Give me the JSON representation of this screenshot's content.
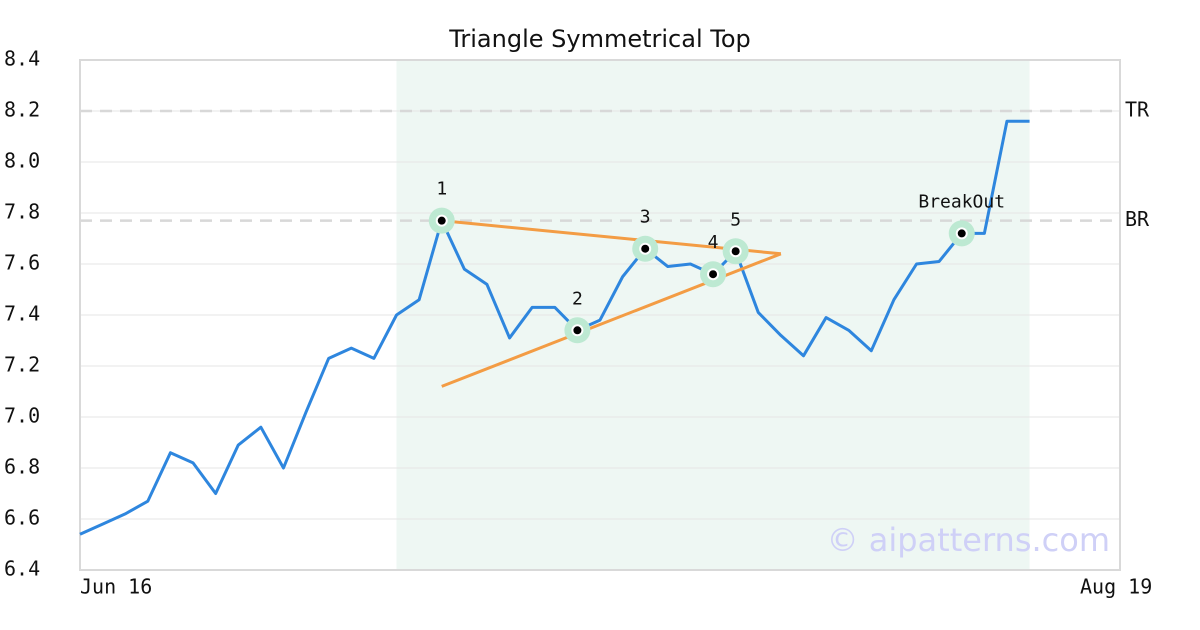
{
  "chart_data": {
    "type": "line",
    "title": "Triangle Symmetrical Top",
    "categories": [
      "Jun 16",
      null,
      null,
      null,
      null,
      null,
      null,
      null,
      null,
      null,
      null,
      null,
      null,
      null,
      null,
      null,
      null,
      null,
      null,
      null,
      null,
      null,
      null,
      null,
      null,
      null,
      null,
      null,
      null,
      null,
      null,
      null,
      null,
      null,
      null,
      null,
      null,
      null,
      null,
      null,
      null,
      null,
      null,
      null,
      null,
      null,
      "Aug 19"
    ],
    "series": [
      {
        "color": "#2e86de",
        "values": [
          6.54,
          6.58,
          6.62,
          6.67,
          6.86,
          6.82,
          6.7,
          6.89,
          6.96,
          6.8,
          7.02,
          7.23,
          7.27,
          7.23,
          7.4,
          7.46,
          7.77,
          7.58,
          7.52,
          7.31,
          7.43,
          7.43,
          7.34,
          7.38,
          7.55,
          7.66,
          7.59,
          7.6,
          7.56,
          7.65,
          7.41,
          7.32,
          7.24,
          7.39,
          7.34,
          7.26,
          7.46,
          7.6,
          7.61,
          7.72,
          7.72,
          8.16,
          8.16,
          null,
          null,
          null,
          null
        ]
      }
    ],
    "ylim": [
      6.4,
      8.4
    ],
    "yticks": [
      6.4,
      6.6,
      6.8,
      {
        "value": 7,
        "label": "7.0"
      },
      7.2,
      7.4,
      7.6,
      7.8,
      {
        "value": 8,
        "label": "8.0"
      },
      8.2,
      8.4
    ],
    "grid": true,
    "shaded_range": {
      "x": [
        14,
        42
      ],
      "color": "#eef7f3"
    },
    "trend_lines": [
      {
        "x": [
          16,
          31
        ],
        "values": [
          7.77,
          7.64
        ],
        "color": "#f39c44"
      },
      {
        "x": [
          16,
          31
        ],
        "values": [
          7.12,
          7.64
        ],
        "color": "#f39c44"
      }
    ],
    "points": [
      {
        "label": "1",
        "x": 16
      },
      {
        "label": "2",
        "x": 22
      },
      {
        "label": "3",
        "x": 25
      },
      {
        "label": "4",
        "x": 28
      },
      {
        "label": "5",
        "x": 29
      },
      {
        "label": "BreakOut",
        "x": 39
      }
    ],
    "levels": [
      {
        "label": "TR",
        "value": 8.2
      },
      {
        "label": "BR",
        "value": 7.77
      }
    ],
    "watermark": "© aipatterns.com"
  }
}
